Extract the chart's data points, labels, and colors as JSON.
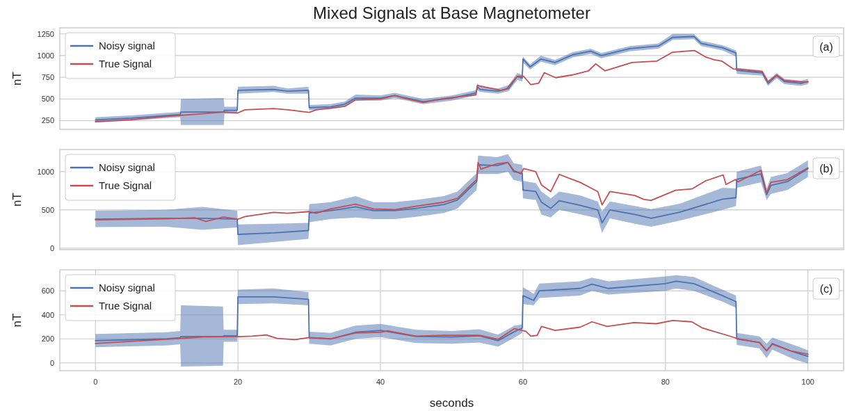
{
  "chart_data": [
    {
      "type": "line",
      "title": "Mixed Signals at Base Magnetometer",
      "ylabel": "nT",
      "xlim": [
        -5,
        105
      ],
      "xticks": [
        0,
        20,
        40,
        60,
        80,
        100
      ],
      "ylim": [
        150,
        1320
      ],
      "yticks": [
        250,
        500,
        750,
        1000,
        1250
      ],
      "grid": "y",
      "legend": "top left",
      "tick_labels": "y",
      "annotations": [
        "(a)"
      ],
      "series": [
        {
          "name": "Noisy signal",
          "color": "#4c72b0",
          "x": [
            0,
            5,
            10,
            11.9,
            12,
            18,
            18.1,
            19.9,
            20,
            25,
            27,
            29.9,
            30,
            33,
            35,
            36.5,
            40,
            42,
            46,
            50,
            53.4,
            53.6,
            54,
            56.5,
            58,
            59.2,
            59.9,
            60,
            61,
            62.5,
            64.5,
            67,
            69.5,
            71,
            75,
            79,
            81,
            84,
            85,
            88,
            89.9,
            90,
            93.6,
            94.4,
            95.6,
            96.7,
            99,
            100
          ],
          "values": [
            260,
            280,
            310,
            320,
            350,
            350,
            370,
            370,
            600,
            610,
            590,
            600,
            400,
            410,
            440,
            510,
            510,
            540,
            470,
            510,
            570,
            640,
            610,
            590,
            620,
            760,
            740,
            960,
            870,
            960,
            920,
            1010,
            1050,
            1000,
            1080,
            1110,
            1210,
            1220,
            1140,
            1090,
            1030,
            830,
            800,
            680,
            770,
            700,
            680,
            700
          ],
          "lower": [
            230,
            250,
            280,
            290,
            200,
            200,
            330,
            330,
            560,
            580,
            560,
            560,
            370,
            380,
            410,
            480,
            480,
            510,
            440,
            480,
            540,
            600,
            580,
            560,
            590,
            720,
            700,
            920,
            840,
            930,
            890,
            980,
            1020,
            970,
            1050,
            1080,
            1180,
            1190,
            1110,
            1060,
            990,
            790,
            770,
            650,
            740,
            670,
            650,
            670
          ],
          "upper": [
            290,
            310,
            340,
            350,
            500,
            510,
            410,
            410,
            640,
            650,
            620,
            640,
            430,
            440,
            470,
            550,
            540,
            570,
            500,
            540,
            600,
            680,
            640,
            620,
            660,
            800,
            780,
            990,
            900,
            1000,
            950,
            1040,
            1080,
            1030,
            1110,
            1140,
            1250,
            1250,
            1170,
            1120,
            1060,
            860,
            830,
            710,
            800,
            730,
            710,
            730
          ]
        },
        {
          "name": "True Signal",
          "color": "#c44e52",
          "x": [
            0,
            5,
            10,
            15,
            18,
            20,
            21,
            25,
            27,
            30,
            31,
            35,
            36.5,
            40,
            42,
            44,
            46,
            48.9,
            53.4,
            53.6,
            56.9,
            57.7,
            59.2,
            60.1,
            61.1,
            62.2,
            63,
            64.6,
            66.9,
            69.2,
            70.2,
            71.5,
            75.3,
            78.8,
            81,
            84.1,
            85.6,
            86.8,
            87.9,
            89.5,
            90.6,
            93.6,
            94.4,
            95.6,
            96.7,
            99,
            100
          ],
          "values": [
            238,
            262,
            300,
            330,
            350,
            340,
            375,
            390,
            375,
            345,
            375,
            415,
            490,
            500,
            540,
            495,
            460,
            506,
            547,
            656,
            600,
            617,
            761,
            761,
            665,
            681,
            803,
            745,
            777,
            825,
            905,
            825,
            921,
            937,
            1039,
            1058,
            985,
            953,
            937,
            847,
            841,
            815,
            697,
            777,
            713,
            697,
            697
          ]
        }
      ]
    },
    {
      "type": "line",
      "ylabel": "nT",
      "xlim": [
        -5,
        105
      ],
      "xticks": [
        0,
        20,
        40,
        60,
        80,
        100
      ],
      "ylim": [
        -20,
        1290
      ],
      "yticks": [
        0,
        500,
        1000
      ],
      "grid": "y",
      "legend": "top left",
      "tick_labels": "y",
      "annotations": [
        "(b)"
      ],
      "series": [
        {
          "name": "Noisy signal",
          "color": "#4c72b0",
          "x": [
            0,
            10,
            15,
            19.9,
            20,
            25,
            29.9,
            30,
            33,
            36.5,
            39,
            42,
            45,
            48.9,
            50.8,
            52.7,
            53.5,
            53.7,
            56.4,
            57.9,
            58.7,
            59.9,
            60,
            61.8,
            62.6,
            63.9,
            65.1,
            68,
            70.5,
            71.1,
            72.2,
            75.7,
            78,
            82,
            88,
            89.9,
            90,
            93.4,
            94.2,
            94.8,
            97.1,
            100
          ],
          "values": [
            380,
            390,
            390,
            380,
            180,
            200,
            230,
            460,
            490,
            540,
            490,
            490,
            520,
            570,
            630,
            800,
            870,
            1090,
            1080,
            1120,
            1000,
            980,
            760,
            740,
            600,
            520,
            620,
            560,
            500,
            330,
            500,
            440,
            390,
            470,
            640,
            660,
            900,
            970,
            700,
            820,
            870,
            1040
          ],
          "lower": [
            275,
            280,
            240,
            270,
            40,
            80,
            120,
            340,
            380,
            400,
            380,
            380,
            410,
            460,
            520,
            690,
            760,
            970,
            970,
            1000,
            890,
            870,
            650,
            630,
            440,
            400,
            500,
            445,
            390,
            200,
            390,
            320,
            280,
            360,
            500,
            550,
            790,
            860,
            630,
            710,
            760,
            930
          ],
          "upper": [
            490,
            500,
            540,
            490,
            310,
            320,
            330,
            575,
            600,
            680,
            600,
            600,
            630,
            680,
            740,
            910,
            980,
            1210,
            1190,
            1230,
            1110,
            1090,
            880,
            850,
            740,
            650,
            740,
            690,
            610,
            480,
            610,
            550,
            510,
            580,
            790,
            780,
            1000,
            1080,
            780,
            930,
            980,
            1150
          ]
        },
        {
          "name": "True Signal",
          "color": "#c44e52",
          "x": [
            0,
            10,
            14,
            15.5,
            18,
            20,
            21,
            25,
            27,
            30,
            31,
            33,
            36.5,
            39,
            42,
            45.1,
            48.9,
            50.8,
            52.7,
            53.5,
            53.7,
            54.1,
            56.4,
            57.9,
            58.7,
            59.7,
            60.1,
            61.8,
            62.6,
            63.9,
            65.1,
            66.5,
            68,
            70.5,
            71.1,
            72.2,
            75.7,
            77,
            78,
            81.4,
            83.7,
            85.6,
            88.1,
            88.5,
            89.8,
            90.2,
            93.4,
            94.2,
            94.8,
            97.1,
            100
          ],
          "values": [
            371,
            385,
            396,
            350,
            407,
            378,
            414,
            468,
            457,
            478,
            457,
            514,
            575,
            514,
            503,
            549,
            601,
            653,
            827,
            896,
            1121,
            1035,
            1104,
            1121,
            1017,
            972,
            1042,
            1000,
            827,
            740,
            965,
            913,
            861,
            740,
            566,
            740,
            688,
            636,
            625,
            757,
            774,
            879,
            958,
            833,
            896,
            868,
            1017,
            722,
            861,
            896,
            1052
          ]
        }
      ]
    },
    {
      "type": "line",
      "xlabel": "seconds",
      "ylabel": "nT",
      "xlim": [
        -5,
        105
      ],
      "xticks": [
        0,
        20,
        40,
        60,
        80,
        100
      ],
      "ylim": [
        -65,
        775
      ],
      "yticks": [
        0,
        200,
        400,
        600
      ],
      "grid": true,
      "legend": "top left",
      "annotations": [
        "(c)"
      ],
      "series": [
        {
          "name": "Noisy signal",
          "color": "#4c72b0",
          "x": [
            0,
            10,
            11.9,
            12,
            17.9,
            18,
            19.9,
            20,
            25,
            29.9,
            30,
            33,
            36.5,
            40,
            45,
            50,
            53.9,
            56.5,
            58.8,
            59.9,
            60,
            61.5,
            62.3,
            68,
            69.7,
            72,
            80,
            81.5,
            84,
            88,
            89.9,
            90,
            93.2,
            94.2,
            95,
            98,
            100
          ],
          "values": [
            185,
            200,
            210,
            220,
            220,
            225,
            225,
            550,
            550,
            530,
            210,
            200,
            255,
            270,
            220,
            215,
            225,
            185,
            260,
            290,
            560,
            520,
            600,
            620,
            655,
            620,
            660,
            680,
            660,
            560,
            510,
            200,
            170,
            100,
            160,
            90,
            55
          ],
          "lower": [
            130,
            145,
            155,
            -30,
            -25,
            175,
            175,
            490,
            495,
            480,
            160,
            145,
            200,
            215,
            165,
            160,
            170,
            135,
            210,
            250,
            490,
            480,
            540,
            560,
            600,
            570,
            600,
            620,
            600,
            510,
            460,
            150,
            120,
            40,
            110,
            30,
            -5
          ],
          "upper": [
            240,
            255,
            265,
            480,
            470,
            275,
            275,
            610,
            620,
            590,
            260,
            250,
            310,
            325,
            275,
            265,
            280,
            235,
            310,
            320,
            630,
            575,
            660,
            680,
            710,
            680,
            720,
            730,
            715,
            610,
            560,
            250,
            220,
            160,
            210,
            150,
            105
          ]
        },
        {
          "name": "True Signal",
          "color": "#c44e52",
          "x": [
            0,
            10,
            15,
            20,
            22,
            24,
            25.5,
            28,
            30,
            33,
            36.5,
            40,
            41,
            45,
            49,
            53.9,
            56.5,
            58.8,
            60.4,
            61.1,
            62,
            62.6,
            64.5,
            68,
            69.7,
            71.8,
            75.6,
            78.7,
            81,
            83.7,
            85.2,
            88.7,
            90.2,
            93.2,
            94.2,
            95,
            97.5,
            100
          ],
          "values": [
            162,
            196,
            216,
            218,
            222,
            233,
            204,
            193,
            211,
            200,
            249,
            255,
            267,
            222,
            229,
            229,
            196,
            285,
            263,
            222,
            229,
            303,
            270,
            297,
            342,
            303,
            335,
            326,
            353,
            342,
            290,
            229,
            200,
            169,
            101,
            155,
            101,
            72
          ]
        }
      ]
    }
  ]
}
